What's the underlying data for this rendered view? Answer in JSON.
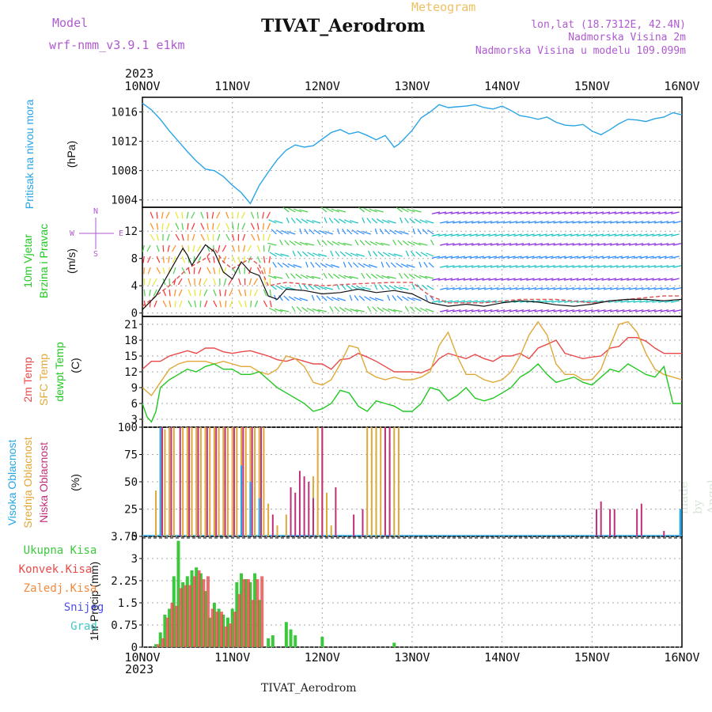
{
  "header": {
    "meteogram": "Meteogram",
    "model_label": "Model",
    "model_name": "wrf-nmm_v3.9.1 e1km",
    "title": "TIVAT_Aerodrom",
    "location": "lon,lat (18.7312E, 42.4N)",
    "elevation": "Nadmorska Visina 2m",
    "model_elevation": "Nadmorska Visina u modelu 109.099m",
    "year": "2023",
    "footer": "TIVAT_Aerodrom",
    "made_by": "made by Angel"
  },
  "colors": {
    "pressure": "#2aa4e6",
    "wind_speed": "#111111",
    "gust": "#e05050",
    "temp2m": "#e84a4a",
    "sfc_temp": "#e0a838",
    "dewpt": "#22c822",
    "high_cloud": "#26a6e6",
    "mid_cloud": "#e0a838",
    "low_cloud": "#c0307a",
    "total_precip": "#3cc83c",
    "conv_precip": "#e84a4a",
    "frozen_precip": "#f08a40",
    "snow": "#5050e0",
    "graupel": "#40c8c8",
    "wind_dir_label": "#b05ad0"
  },
  "chart_data": [
    {
      "type": "line",
      "name": "pressure",
      "ylabel_left": "Pritisak na nivou mora",
      "ylabel_unit": "(hPa)",
      "x_ticks": [
        "10NOV",
        "11NOV",
        "12NOV",
        "13NOV",
        "14NOV",
        "15NOV",
        "16NOV"
      ],
      "ylim": [
        1003,
        1018
      ],
      "y_ticks": [
        1004,
        1008,
        1012,
        1016
      ],
      "x": [
        0,
        0.1,
        0.2,
        0.3,
        0.4,
        0.5,
        0.6,
        0.7,
        0.8,
        0.9,
        1.0,
        1.1,
        1.2,
        1.3,
        1.4,
        1.5,
        1.6,
        1.7,
        1.8,
        1.9,
        2.0,
        2.1,
        2.2,
        2.3,
        2.4,
        2.5,
        2.6,
        2.7,
        2.8,
        2.85,
        2.9,
        3.0,
        3.1,
        3.2,
        3.3,
        3.4,
        3.5,
        3.6,
        3.7,
        3.8,
        3.9,
        4.0,
        4.1,
        4.2,
        4.3,
        4.4,
        4.5,
        4.6,
        4.7,
        4.8,
        4.9,
        5.0,
        5.1,
        5.2,
        5.3,
        5.4,
        5.5,
        5.6,
        5.7,
        5.8,
        5.9,
        6.0
      ],
      "values": [
        1017.2,
        1016.3,
        1015.0,
        1013.4,
        1012.0,
        1010.6,
        1009.3,
        1008.2,
        1008.0,
        1007.2,
        1006.0,
        1005.0,
        1003.5,
        1006.0,
        1007.8,
        1009.5,
        1010.8,
        1011.5,
        1011.2,
        1011.4,
        1012.3,
        1013.2,
        1013.6,
        1013.0,
        1013.3,
        1012.8,
        1012.2,
        1012.8,
        1011.2,
        1011.6,
        1012.2,
        1013.5,
        1015.2,
        1016.0,
        1017.0,
        1016.6,
        1016.7,
        1016.8,
        1017.0,
        1016.6,
        1016.4,
        1016.8,
        1016.2,
        1015.5,
        1015.3,
        1015.0,
        1015.3,
        1014.6,
        1014.2,
        1014.1,
        1014.3,
        1013.4,
        1012.9,
        1013.6,
        1014.4,
        1015.0,
        1014.9,
        1014.7,
        1015.1,
        1015.3,
        1015.9,
        1015.6
      ]
    },
    {
      "type": "line",
      "name": "wind",
      "ylabel_left_1": "10m Vjetar",
      "ylabel_left_2": "Brzina i Pravac",
      "ylabel_unit": "(m/s)",
      "compass_n": "N",
      "compass_s": "S",
      "compass_w": "W",
      "compass_e": "E",
      "ylim": [
        -0.5,
        15.5
      ],
      "y_ticks": [
        0,
        4,
        8,
        12
      ],
      "series": [
        {
          "name": "10m wind speed",
          "x": [
            0,
            0.15,
            0.3,
            0.45,
            0.5,
            0.55,
            0.7,
            0.8,
            0.9,
            1.0,
            1.1,
            1.2,
            1.3,
            1.4,
            1.5,
            1.6,
            1.8,
            2.0,
            2.2,
            2.4,
            2.6,
            2.8,
            3.0,
            3.2,
            3.4,
            3.6,
            3.8,
            4.0,
            4.2,
            4.4,
            4.6,
            4.8,
            5.0,
            5.2,
            5.4,
            5.6,
            5.8,
            6.0
          ],
          "values": [
            0.5,
            2.5,
            6.0,
            9.5,
            8.5,
            7.0,
            10.0,
            9.0,
            6.0,
            5.0,
            7.5,
            6.0,
            5.5,
            2.5,
            2.0,
            3.5,
            3.3,
            2.8,
            3.0,
            3.5,
            3.0,
            3.3,
            2.8,
            1.5,
            1.0,
            1.3,
            1.0,
            1.5,
            1.8,
            1.6,
            1.2,
            1.0,
            1.3,
            1.8,
            2.0,
            2.0,
            1.8,
            2.0
          ]
        },
        {
          "name": "gust",
          "x": [
            0,
            0.3,
            0.5,
            0.7,
            0.8,
            0.9,
            1.0,
            1.2,
            1.3,
            1.4,
            1.6,
            2.0,
            2.4,
            2.8,
            3.0,
            3.2,
            3.4,
            3.8,
            4.2,
            4.6,
            5.0,
            5.4,
            5.8,
            6.0
          ],
          "values": [
            1.0,
            4.0,
            6.5,
            8.0,
            9.5,
            7.5,
            6.5,
            8.0,
            7.0,
            4.0,
            4.5,
            4.0,
            4.3,
            4.5,
            4.5,
            2.5,
            1.5,
            1.5,
            2.0,
            2.0,
            1.5,
            2.0,
            2.5,
            2.5
          ]
        }
      ]
    },
    {
      "type": "line",
      "name": "temperature",
      "ylabel_left_1": "2m Temp",
      "ylabel_left_2": "SFC Temp",
      "ylabel_left_3": "dewpt Temp",
      "ylabel_unit": "(C)",
      "ylim": [
        1.5,
        22.5
      ],
      "y_ticks": [
        3,
        6,
        9,
        12,
        15,
        18,
        21
      ],
      "series": [
        {
          "name": "2m Temp",
          "x": [
            0,
            0.1,
            0.2,
            0.3,
            0.4,
            0.5,
            0.6,
            0.7,
            0.8,
            0.9,
            1.0,
            1.1,
            1.2,
            1.3,
            1.4,
            1.5,
            1.6,
            1.7,
            1.8,
            1.9,
            2.0,
            2.1,
            2.2,
            2.3,
            2.4,
            2.5,
            2.6,
            2.7,
            2.8,
            2.9,
            3.0,
            3.1,
            3.2,
            3.3,
            3.4,
            3.5,
            3.6,
            3.7,
            3.8,
            3.9,
            4.0,
            4.1,
            4.2,
            4.3,
            4.4,
            4.5,
            4.6,
            4.7,
            4.8,
            4.9,
            5.0,
            5.1,
            5.2,
            5.3,
            5.4,
            5.5,
            5.6,
            5.7,
            5.8,
            5.9,
            6.0
          ],
          "values": [
            12.5,
            14.0,
            14.0,
            15.0,
            15.5,
            16.0,
            15.5,
            16.5,
            16.5,
            15.8,
            15.5,
            15.8,
            16.0,
            15.5,
            15.0,
            14.3,
            14.0,
            14.5,
            14.0,
            13.5,
            13.5,
            12.5,
            14.3,
            14.5,
            15.5,
            14.8,
            14.0,
            13.0,
            12.0,
            12.0,
            12.0,
            11.8,
            12.5,
            14.5,
            15.5,
            15.0,
            14.5,
            15.3,
            14.5,
            14.0,
            15.0,
            15.0,
            15.5,
            14.5,
            16.5,
            17.2,
            18.0,
            15.5,
            15.0,
            14.5,
            14.8,
            15.0,
            16.5,
            16.8,
            18.5,
            18.5,
            17.8,
            16.5,
            15.5,
            15.5,
            15.5
          ]
        },
        {
          "name": "SFC Temp",
          "x": [
            0,
            0.1,
            0.2,
            0.3,
            0.4,
            0.5,
            0.6,
            0.7,
            0.8,
            0.9,
            1.0,
            1.1,
            1.2,
            1.3,
            1.4,
            1.5,
            1.6,
            1.7,
            1.8,
            1.9,
            2.0,
            2.1,
            2.2,
            2.3,
            2.4,
            2.5,
            2.6,
            2.7,
            2.8,
            2.9,
            3.0,
            3.1,
            3.2,
            3.3,
            3.4,
            3.5,
            3.6,
            3.7,
            3.8,
            3.9,
            4.0,
            4.1,
            4.2,
            4.3,
            4.4,
            4.5,
            4.6,
            4.7,
            4.8,
            4.9,
            5.0,
            5.1,
            5.2,
            5.3,
            5.4,
            5.5,
            5.6,
            5.7,
            5.8,
            5.9,
            6.0
          ],
          "values": [
            9.0,
            7.5,
            10.0,
            12.5,
            13.5,
            14.0,
            14.0,
            14.0,
            13.5,
            14.0,
            13.5,
            13.0,
            13.0,
            12.0,
            11.5,
            12.5,
            15.0,
            14.5,
            13.0,
            10.0,
            9.5,
            10.5,
            13.5,
            17.0,
            16.5,
            12.0,
            11.0,
            10.5,
            11.0,
            10.5,
            10.5,
            11.0,
            12.0,
            17.0,
            19.5,
            15.0,
            11.5,
            11.5,
            10.5,
            10.0,
            10.5,
            12.0,
            15.0,
            19.0,
            21.5,
            19.0,
            13.5,
            11.5,
            11.5,
            10.5,
            10.5,
            12.5,
            17.0,
            21.0,
            21.5,
            19.5,
            15.5,
            12.5,
            11.5,
            11.0,
            10.5
          ]
        },
        {
          "name": "dewpt Temp",
          "x": [
            0,
            0.05,
            0.1,
            0.15,
            0.2,
            0.3,
            0.4,
            0.5,
            0.6,
            0.7,
            0.8,
            0.9,
            1.0,
            1.1,
            1.2,
            1.3,
            1.4,
            1.5,
            1.6,
            1.7,
            1.8,
            1.9,
            2.0,
            2.1,
            2.2,
            2.3,
            2.4,
            2.5,
            2.6,
            2.7,
            2.8,
            2.9,
            3.0,
            3.1,
            3.2,
            3.3,
            3.4,
            3.5,
            3.6,
            3.7,
            3.8,
            3.9,
            4.0,
            4.1,
            4.2,
            4.3,
            4.4,
            4.5,
            4.6,
            4.7,
            4.8,
            4.9,
            5.0,
            5.1,
            5.2,
            5.3,
            5.4,
            5.5,
            5.6,
            5.7,
            5.8,
            5.9,
            6.0
          ],
          "values": [
            6.0,
            3.5,
            2.5,
            4.5,
            9.0,
            10.5,
            11.5,
            12.5,
            12.0,
            13.0,
            13.5,
            12.5,
            12.5,
            11.5,
            11.5,
            12.0,
            10.5,
            9.0,
            8.0,
            7.0,
            6.0,
            4.5,
            5.0,
            6.0,
            8.5,
            8.0,
            5.5,
            4.5,
            6.5,
            6.0,
            5.5,
            4.5,
            4.5,
            6.0,
            9.0,
            8.5,
            6.5,
            7.5,
            9.0,
            7.0,
            6.5,
            7.0,
            8.0,
            9.0,
            11.0,
            12.0,
            13.5,
            11.5,
            10.0,
            10.5,
            11.0,
            10.0,
            9.5,
            11.0,
            12.5,
            12.0,
            13.5,
            12.5,
            11.5,
            11.0,
            13.0,
            6.0,
            6.0
          ]
        }
      ]
    },
    {
      "type": "bar",
      "name": "cloud_cover",
      "ylabel_left_1": "Visoka Oblacnost",
      "ylabel_left_2": "Srednja Oblacnost",
      "ylabel_left_3": "Niska Oblacnost",
      "ylabel_unit": "(%)",
      "ylim": [
        0,
        100
      ],
      "y_ticks": [
        0,
        25,
        50,
        75,
        100
      ],
      "series": [
        {
          "name": "Srednja Oblacnost",
          "x": [
            0.15,
            0.2,
            0.25,
            0.3,
            0.35,
            0.45,
            0.5,
            0.55,
            0.6,
            0.65,
            0.7,
            0.75,
            0.8,
            0.85,
            0.9,
            0.95,
            1.0,
            1.05,
            1.1,
            1.15,
            1.2,
            1.25,
            1.3,
            1.35,
            1.4,
            1.5,
            1.6,
            1.9,
            1.95,
            2.0,
            2.05,
            2.1,
            2.5,
            2.55,
            2.6,
            2.65,
            2.7,
            2.75,
            2.8,
            2.85
          ],
          "values": [
            42,
            100,
            98,
            100,
            100,
            100,
            100,
            100,
            100,
            100,
            100,
            100,
            100,
            100,
            100,
            100,
            100,
            100,
            100,
            100,
            100,
            100,
            100,
            100,
            30,
            10,
            20,
            55,
            100,
            100,
            40,
            10,
            100,
            100,
            100,
            100,
            100,
            85,
            100,
            100
          ]
        },
        {
          "name": "Niska Oblacnost",
          "x": [
            0.22,
            0.32,
            0.42,
            0.52,
            0.62,
            0.72,
            0.82,
            0.92,
            1.02,
            1.12,
            1.22,
            1.32,
            1.45,
            1.65,
            1.7,
            1.75,
            1.8,
            1.85,
            1.9,
            2.0,
            2.15,
            2.35,
            2.45,
            2.7,
            2.75,
            5.05,
            5.1,
            5.2,
            5.25,
            5.5,
            5.55,
            5.8
          ],
          "values": [
            100,
            100,
            100,
            100,
            100,
            100,
            100,
            100,
            100,
            100,
            100,
            100,
            20,
            45,
            40,
            60,
            55,
            50,
            35,
            100,
            45,
            20,
            25,
            100,
            100,
            25,
            32,
            25,
            25,
            25,
            30,
            5
          ]
        },
        {
          "name": "Visoka Oblacnost",
          "x": [
            0.2,
            1.1,
            1.2,
            1.3,
            5.98
          ],
          "values": [
            100,
            65,
            50,
            35,
            25
          ]
        }
      ]
    },
    {
      "type": "bar",
      "name": "precipitation",
      "ylabel_left": "1hr Precip (mm)",
      "legend": [
        "Ukupna Kisa",
        "Konvek.Kisa",
        "Zaledj.Kisa",
        "Snijeg",
        "Grad"
      ],
      "ylim": [
        0,
        3.75
      ],
      "y_ticks": [
        0,
        0.75,
        1.5,
        2.25,
        3,
        3.75
      ],
      "y_tick_labels": [
        "0",
        "0.75",
        "1.5",
        "2.25",
        "3",
        "3.75"
      ],
      "series": [
        {
          "name": "Ukupna Kisa",
          "x": [
            0.15,
            0.2,
            0.25,
            0.3,
            0.35,
            0.4,
            0.45,
            0.5,
            0.55,
            0.6,
            0.65,
            0.7,
            0.75,
            0.8,
            0.85,
            0.9,
            0.95,
            1.0,
            1.05,
            1.1,
            1.15,
            1.2,
            1.25,
            1.3,
            1.4,
            1.45,
            1.6,
            1.65,
            1.7,
            2.0,
            2.8
          ],
          "values": [
            0.1,
            0.5,
            1.1,
            1.3,
            2.4,
            3.6,
            2.2,
            2.4,
            2.6,
            2.7,
            2.5,
            1.9,
            1.0,
            1.5,
            1.3,
            1.1,
            1.0,
            1.3,
            2.2,
            2.5,
            2.3,
            2.2,
            2.5,
            1.6,
            0.3,
            0.4,
            0.85,
            0.6,
            0.4,
            0.35,
            0.15
          ]
        },
        {
          "name": "Konvek.Kisa",
          "x": [
            0.18,
            0.23,
            0.28,
            0.33,
            0.38,
            0.43,
            0.48,
            0.53,
            0.58,
            0.63,
            0.68,
            0.73,
            0.78,
            0.83,
            0.88,
            0.93,
            0.98,
            1.03,
            1.08,
            1.13,
            1.18,
            1.23,
            1.28,
            1.33
          ],
          "values": [
            0.1,
            0.3,
            1.0,
            1.5,
            1.4,
            2.0,
            2.1,
            2.1,
            2.4,
            2.6,
            2.3,
            2.4,
            1.3,
            1.2,
            1.2,
            0.7,
            0.8,
            1.2,
            1.8,
            2.3,
            2.3,
            1.6,
            2.3,
            2.4
          ]
        }
      ]
    }
  ]
}
